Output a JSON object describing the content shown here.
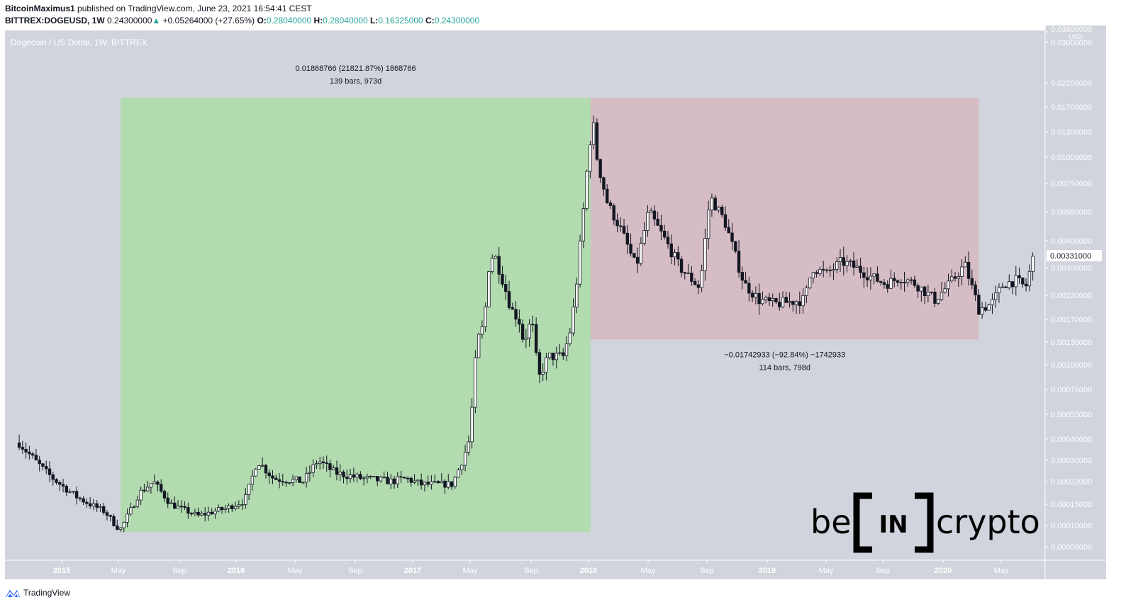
{
  "header": {
    "author": "BitcoinMaximus1",
    "published": "published on TradingView.com, June 23, 2021 16:54:41 CEST",
    "symbol": "BITTREX:DOGEUSD, 1W",
    "last": "0.24300000",
    "change": "+0.05264000 (+27.65%)",
    "o_label": "O:",
    "o": "0.28040000",
    "h_label": "H:",
    "h": "0.28040000",
    "l_label": "L:",
    "l": "0.16325000",
    "c_label": "C:",
    "c": "0.24300000"
  },
  "footer": {
    "brand": "TradingView"
  },
  "watermark": {
    "text": "be[IN]crypto"
  },
  "colors": {
    "background": "#d1d4dc",
    "up_range": "#b2dbb0",
    "down_range": "#d6bcc4",
    "candle": "#131722",
    "accent": "#26a69a",
    "tv_blue": "#2962ff"
  },
  "chart_data": {
    "type": "candlestick",
    "title": "Dogecoin / US Dollar, 1W, BITTREX",
    "y_unit": "USD",
    "y_scale": "log",
    "grid": false,
    "y_ticks": [
      "0.03800000",
      "0.03000000",
      "0.02200000",
      "0.01700000",
      "0.01300000",
      "0.01000000",
      "0.00750000",
      "0.00550000",
      "0.00400000",
      "0.00300000",
      "0.00220000",
      "0.00170000",
      "0.00130000",
      "0.00100000",
      "0.00075000",
      "0.00055000",
      "0.00040000",
      "0.00030000",
      "0.00022000",
      "0.00015000",
      "0.00010000",
      "0.00006000"
    ],
    "x_ticks": [
      "2015",
      "May",
      "Sep",
      "2016",
      "May",
      "Sep",
      "2017",
      "May",
      "Sep",
      "2018",
      "May",
      "Sep",
      "2019",
      "May",
      "Sep",
      "2020",
      "May"
    ],
    "current_price_label": "0.00331000",
    "closes": [
      [
        "2014-10-05",
        0.00038
      ],
      [
        "2014-12-01",
        0.00025
      ],
      [
        "2015-02-01",
        0.00017
      ],
      [
        "2015-04-01",
        0.00013
      ],
      [
        "2015-05-01",
        9e-05
      ],
      [
        "2015-06-10",
        0.00018
      ],
      [
        "2015-07-10",
        0.00022
      ],
      [
        "2015-08-15",
        0.00015
      ],
      [
        "2015-10-10",
        0.00012
      ],
      [
        "2015-12-10",
        0.00014
      ],
      [
        "2016-01-15",
        0.00016
      ],
      [
        "2016-02-10",
        0.0003
      ],
      [
        "2016-03-15",
        0.00023
      ],
      [
        "2016-05-15",
        0.00022
      ],
      [
        "2016-06-15",
        0.0003
      ],
      [
        "2016-07-20",
        0.00025
      ],
      [
        "2016-09-15",
        0.00023
      ],
      [
        "2016-11-15",
        0.00022
      ],
      [
        "2016-12-15",
        0.00023
      ],
      [
        "2017-01-15",
        0.00021
      ],
      [
        "2017-03-20",
        0.00021
      ],
      [
        "2017-04-10",
        0.0003
      ],
      [
        "2017-04-25",
        0.0004
      ],
      [
        "2017-05-10",
        0.0013
      ],
      [
        "2017-05-25",
        0.0016
      ],
      [
        "2017-06-05",
        0.0032
      ],
      [
        "2017-06-15",
        0.0035
      ],
      [
        "2017-07-05",
        0.0025
      ],
      [
        "2017-07-20",
        0.0019
      ],
      [
        "2017-08-05",
        0.0017
      ],
      [
        "2017-08-15",
        0.0013
      ],
      [
        "2017-09-01",
        0.0017
      ],
      [
        "2017-09-15",
        0.00085
      ],
      [
        "2017-10-05",
        0.0011
      ],
      [
        "2017-11-05",
        0.0011
      ],
      [
        "2017-11-20",
        0.0015
      ],
      [
        "2017-12-01",
        0.0023
      ],
      [
        "2017-12-15",
        0.005
      ],
      [
        "2017-12-25",
        0.009
      ],
      [
        "2018-01-05",
        0.015
      ],
      [
        "2018-01-15",
        0.0095
      ],
      [
        "2018-02-05",
        0.006
      ],
      [
        "2018-03-05",
        0.0045
      ],
      [
        "2018-04-05",
        0.003
      ],
      [
        "2018-05-01",
        0.0055
      ],
      [
        "2018-06-05",
        0.004
      ],
      [
        "2018-07-05",
        0.003
      ],
      [
        "2018-08-15",
        0.0024
      ],
      [
        "2018-09-05",
        0.0065
      ],
      [
        "2018-10-05",
        0.005
      ],
      [
        "2018-11-15",
        0.0025
      ],
      [
        "2018-12-15",
        0.0021
      ],
      [
        "2019-01-15",
        0.002
      ],
      [
        "2019-03-20",
        0.0021
      ],
      [
        "2019-04-05",
        0.003
      ],
      [
        "2019-05-05",
        0.0028
      ],
      [
        "2019-06-05",
        0.0032
      ],
      [
        "2019-07-05",
        0.003
      ],
      [
        "2019-08-05",
        0.0027
      ],
      [
        "2019-09-05",
        0.0025
      ],
      [
        "2019-10-05",
        0.0027
      ],
      [
        "2019-11-05",
        0.0025
      ],
      [
        "2019-12-15",
        0.0021
      ],
      [
        "2020-01-15",
        0.0025
      ],
      [
        "2020-02-15",
        0.0031
      ],
      [
        "2020-03-15",
        0.0019
      ],
      [
        "2020-04-10",
        0.002
      ],
      [
        "2020-05-05",
        0.0025
      ],
      [
        "2020-06-01",
        0.0026
      ],
      [
        "2020-06-20",
        0.0024
      ],
      [
        "2020-07-05",
        0.0033
      ]
    ],
    "measurements": [
      {
        "kind": "up",
        "from_date": "2015-05-03",
        "to_date": "2018-01-01",
        "low": 8.56e-05,
        "high": 0.01877,
        "line1": "0.01868766 (21821.87%) 1868766",
        "line2": "139 bars, 973d"
      },
      {
        "kind": "down",
        "from_date": "2018-01-01",
        "to_date": "2020-03-15",
        "low": 0.00134,
        "high": 0.01877,
        "line1": "−0.01742933 (−92.84%) −1742933",
        "line2": "114 bars, 798d"
      }
    ]
  }
}
